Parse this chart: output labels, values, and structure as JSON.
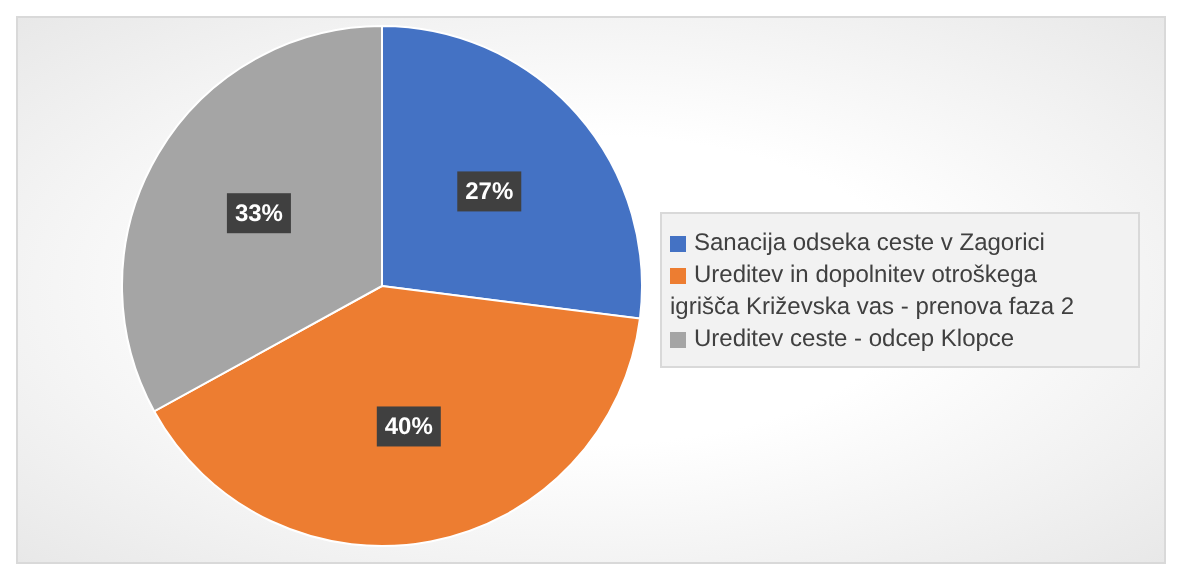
{
  "chart_data": {
    "type": "pie",
    "categories": [
      "Sanacija odseka ceste v Zagorici",
      "Ureditev in dopolnitev otroškega igrišča Križevska vas - prenova faza 2",
      "Ureditev ceste - odcep Klopce"
    ],
    "values": [
      27,
      40,
      33
    ],
    "colors": [
      "#4472c4",
      "#ed7d31",
      "#a5a5a5"
    ],
    "value_labels": [
      "27%",
      "40%",
      "33%"
    ],
    "legend": "right"
  }
}
